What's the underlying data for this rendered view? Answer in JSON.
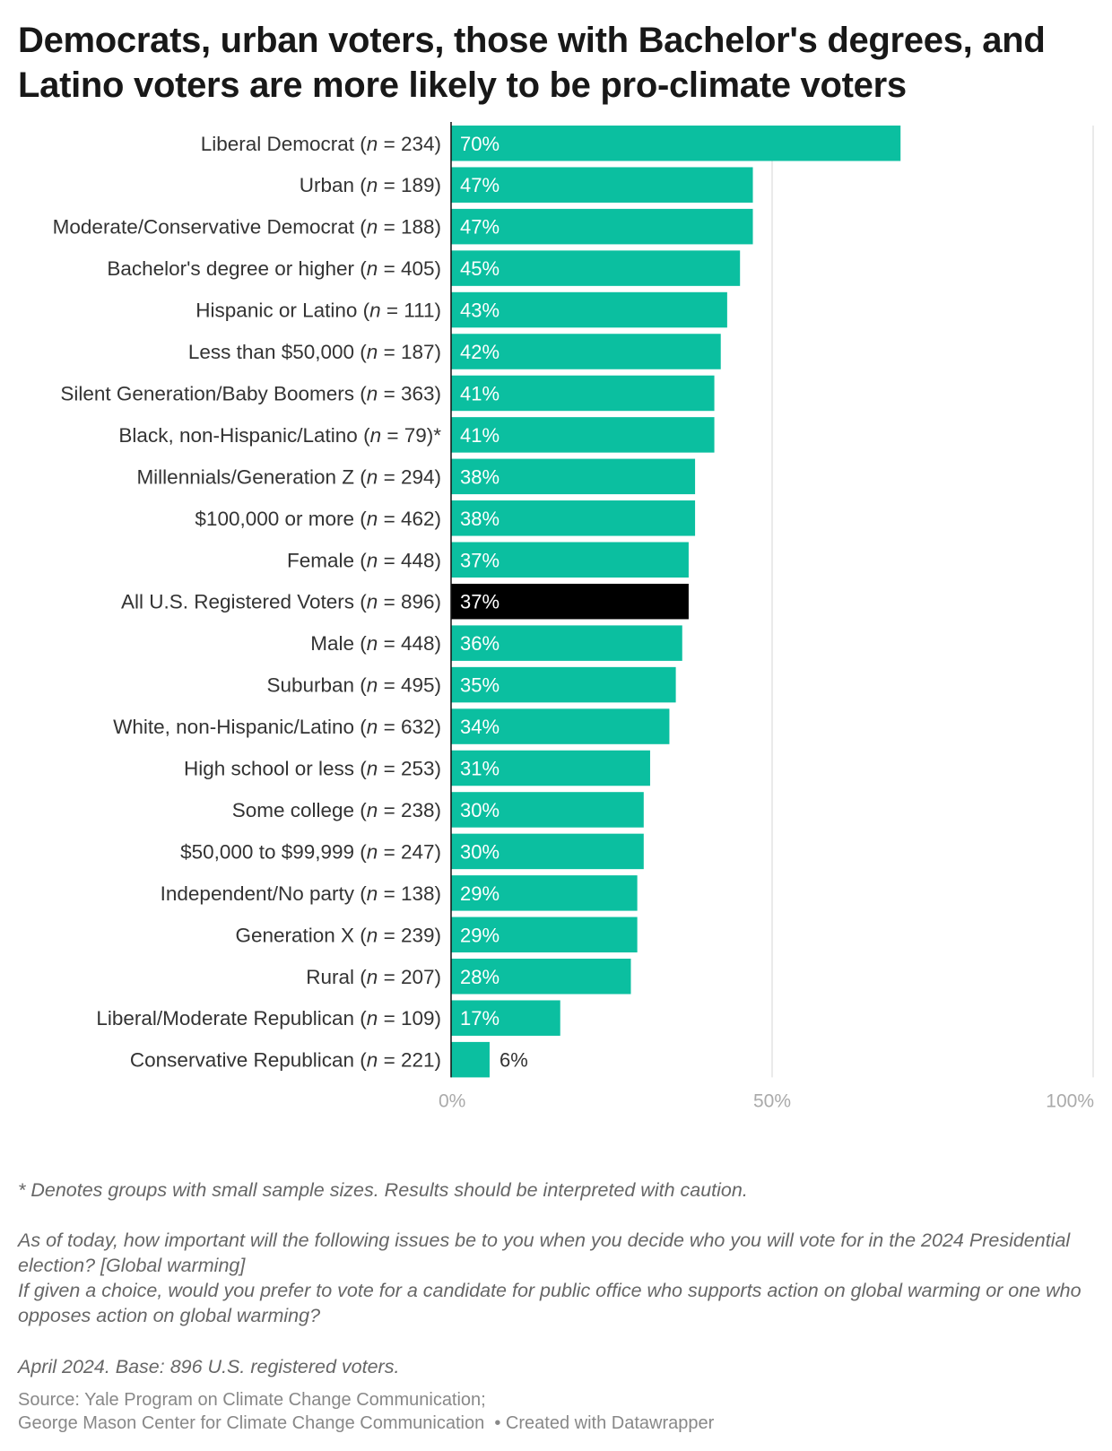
{
  "title": "Democrats, urban voters, those with Bachelor's degrees, and Latino voters are more likely to be pro-climate voters",
  "chart_data": {
    "type": "bar",
    "orientation": "horizontal",
    "title": "Democrats, urban voters, those with Bachelor's degrees, and Latino voters are more likely to be pro-climate voters",
    "categories": [
      {
        "label": "Liberal Democrat",
        "n": "234",
        "mark": ""
      },
      {
        "label": "Urban",
        "n": "189",
        "mark": ""
      },
      {
        "label": "Moderate/Conservative Democrat",
        "n": "188",
        "mark": ""
      },
      {
        "label": "Bachelor's degree or higher",
        "n": "405",
        "mark": ""
      },
      {
        "label": "Hispanic or Latino",
        "n": "111",
        "mark": ""
      },
      {
        "label": "Less than $50,000",
        "n": "187",
        "mark": ""
      },
      {
        "label": "Silent Generation/Baby Boomers",
        "n": "363",
        "mark": ""
      },
      {
        "label": "Black, non-Hispanic/Latino",
        "n": "79",
        "mark": "*"
      },
      {
        "label": "Millennials/Generation Z",
        "n": "294",
        "mark": ""
      },
      {
        "label": "$100,000 or more",
        "n": "462",
        "mark": ""
      },
      {
        "label": "Female",
        "n": "448",
        "mark": ""
      },
      {
        "label": "All U.S. Registered Voters",
        "n": "896",
        "mark": "",
        "highlight": true
      },
      {
        "label": "Male",
        "n": "448",
        "mark": ""
      },
      {
        "label": "Suburban",
        "n": "495",
        "mark": ""
      },
      {
        "label": "White, non-Hispanic/Latino",
        "n": "632",
        "mark": ""
      },
      {
        "label": "High school or less",
        "n": "253",
        "mark": ""
      },
      {
        "label": "Some college",
        "n": "238",
        "mark": ""
      },
      {
        "label": "$50,000 to $99,999",
        "n": "247",
        "mark": ""
      },
      {
        "label": "Independent/No party",
        "n": "138",
        "mark": ""
      },
      {
        "label": "Generation X",
        "n": "239",
        "mark": ""
      },
      {
        "label": "Rural",
        "n": "207",
        "mark": ""
      },
      {
        "label": "Liberal/Moderate Republican",
        "n": "109",
        "mark": ""
      },
      {
        "label": "Conservative Republican",
        "n": "221",
        "mark": ""
      }
    ],
    "values": [
      70,
      47,
      47,
      45,
      43,
      42,
      41,
      41,
      38,
      38,
      37,
      37,
      36,
      35,
      34,
      31,
      30,
      30,
      29,
      29,
      28,
      17,
      6
    ],
    "value_suffix": "%",
    "xlim": [
      0,
      100
    ],
    "xticks": [
      "0%",
      "50%",
      "100%"
    ],
    "xtick_values": [
      0,
      50,
      100
    ],
    "grid": true,
    "colors": {
      "bar": "#0bbfa0",
      "highlight": "#000000",
      "grid": "#e3e3e3"
    }
  },
  "notes": {
    "caution": "* Denotes groups with small sample sizes. Results should be interpreted with caution.",
    "question1": "As of today, how important will the following issues be to you when you decide who you will vote for in the 2024 Presidential election? [Global warming]",
    "question2": "If given a choice, would you prefer to vote for a candidate for public office who supports action on global warming or one who opposes action on global warming?",
    "base": "April 2024. Base: 896 U.S. registered voters."
  },
  "source": {
    "line1": "Source: Yale Program on Climate Change Communication;",
    "line2": "George Mason Center for Climate Change Communication",
    "credit": "• Created with Datawrapper"
  }
}
